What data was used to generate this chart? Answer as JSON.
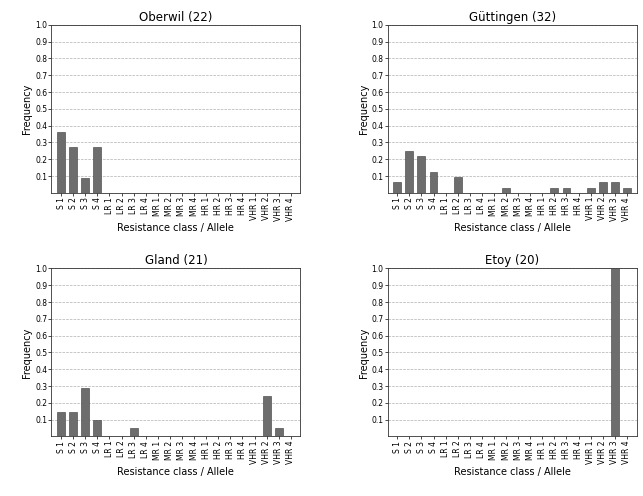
{
  "categories": [
    "S 1",
    "S 2",
    "S 3",
    "S 4",
    "LR 1",
    "LR 2",
    "LR 3",
    "LR 4",
    "MR 1",
    "MR 2",
    "MR 3",
    "MR 4",
    "HR 1",
    "HR 2",
    "HR 3",
    "HR 4",
    "VHR 1",
    "VHR 2",
    "VHR 3",
    "VHR 4"
  ],
  "subplots": [
    {
      "title": "Oberwil (22)",
      "values": [
        0.3636,
        0.2727,
        0.0909,
        0.2727,
        0,
        0,
        0,
        0,
        0,
        0,
        0,
        0,
        0,
        0,
        0,
        0,
        0,
        0,
        0,
        0
      ]
    },
    {
      "title": "Güttingen (32)",
      "values": [
        0.0625,
        0.25,
        0.21875,
        0.125,
        0,
        0.09375,
        0,
        0,
        0,
        0.03125,
        0,
        0,
        0,
        0.03125,
        0.03125,
        0,
        0.03125,
        0.0625,
        0.0625,
        0.03125
      ]
    },
    {
      "title": "Gland (21)",
      "values": [
        0.1429,
        0.1429,
        0.2857,
        0.0952,
        0,
        0,
        0.0476,
        0,
        0,
        0,
        0,
        0,
        0,
        0,
        0,
        0,
        0,
        0.2381,
        0.0476,
        0
      ]
    },
    {
      "title": "Etoy (20)",
      "values": [
        0,
        0,
        0,
        0,
        0,
        0,
        0,
        0,
        0,
        0,
        0,
        0,
        0,
        0,
        0,
        0,
        0,
        0,
        1.0,
        0
      ]
    }
  ],
  "bar_color": "#6d6d6d",
  "bar_edge_color": "#3a3a3a",
  "ylim": [
    0,
    1.0
  ],
  "yticks": [
    0.1,
    0.2,
    0.3,
    0.4,
    0.5,
    0.6,
    0.7,
    0.8,
    0.9,
    1.0
  ],
  "ylabel": "Frequency",
  "xlabel": "Resistance class / Allele",
  "grid_color": "#b0b0b0",
  "background_color": "#ffffff",
  "title_fontsize": 8.5,
  "axis_label_fontsize": 7,
  "tick_fontsize": 5.5,
  "bar_width": 0.65
}
